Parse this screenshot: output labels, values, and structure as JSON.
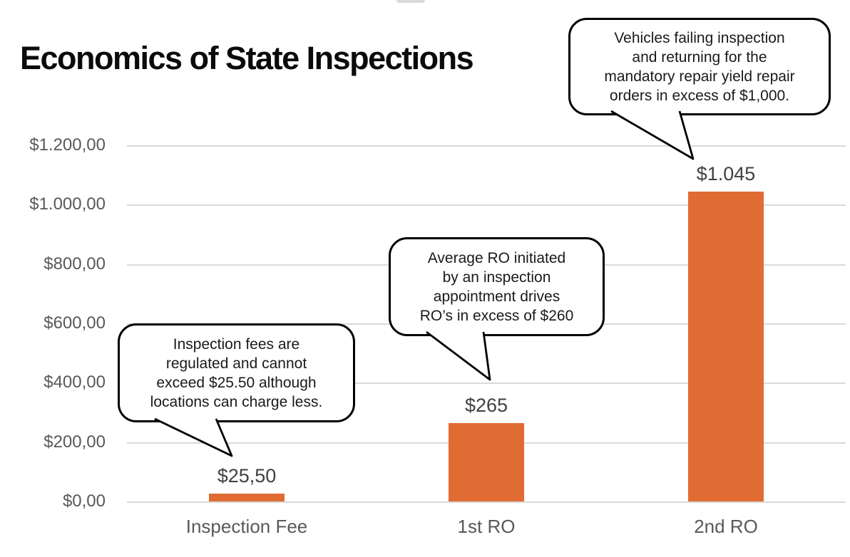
{
  "chart_data": {
    "type": "bar",
    "title": "Economics of State Inspections",
    "categories": [
      "Inspection Fee",
      "1st RO",
      "2nd RO"
    ],
    "values": [
      25.5,
      265,
      1045
    ],
    "value_labels": [
      "$25,50",
      "$265",
      "$1.045"
    ],
    "xlabel": "",
    "ylabel": "",
    "ylim": [
      0,
      1200
    ],
    "ytick_step": 200,
    "ytick_labels": [
      "$1.200,00",
      "$1.000,00",
      "$800,00",
      "$600,00",
      "$400,00",
      "$200,00",
      "$0,00"
    ],
    "grid": true,
    "legend": false,
    "annotations": [
      {
        "target": "Inspection Fee",
        "text": "Inspection fees are\nregulated and cannot\nexceed $25.50 although\nlocations can charge less."
      },
      {
        "target": "1st RO",
        "text": "Average RO initiated\nby an inspection\nappointment drives\nRO’s in excess of $260"
      },
      {
        "target": "2nd RO",
        "text": "Vehicles failing inspection\nand returning for the\nmandatory repair yield repair\norders in excess of $1,000."
      }
    ]
  },
  "colors": {
    "bar": "#E06C34",
    "gridline": "#D9D9D9",
    "axis_text": "#595959",
    "data_label_text": "#404040",
    "title_text": "#0B0B0B",
    "callout_fill": "#FFFFFF",
    "callout_border": "#000000"
  }
}
